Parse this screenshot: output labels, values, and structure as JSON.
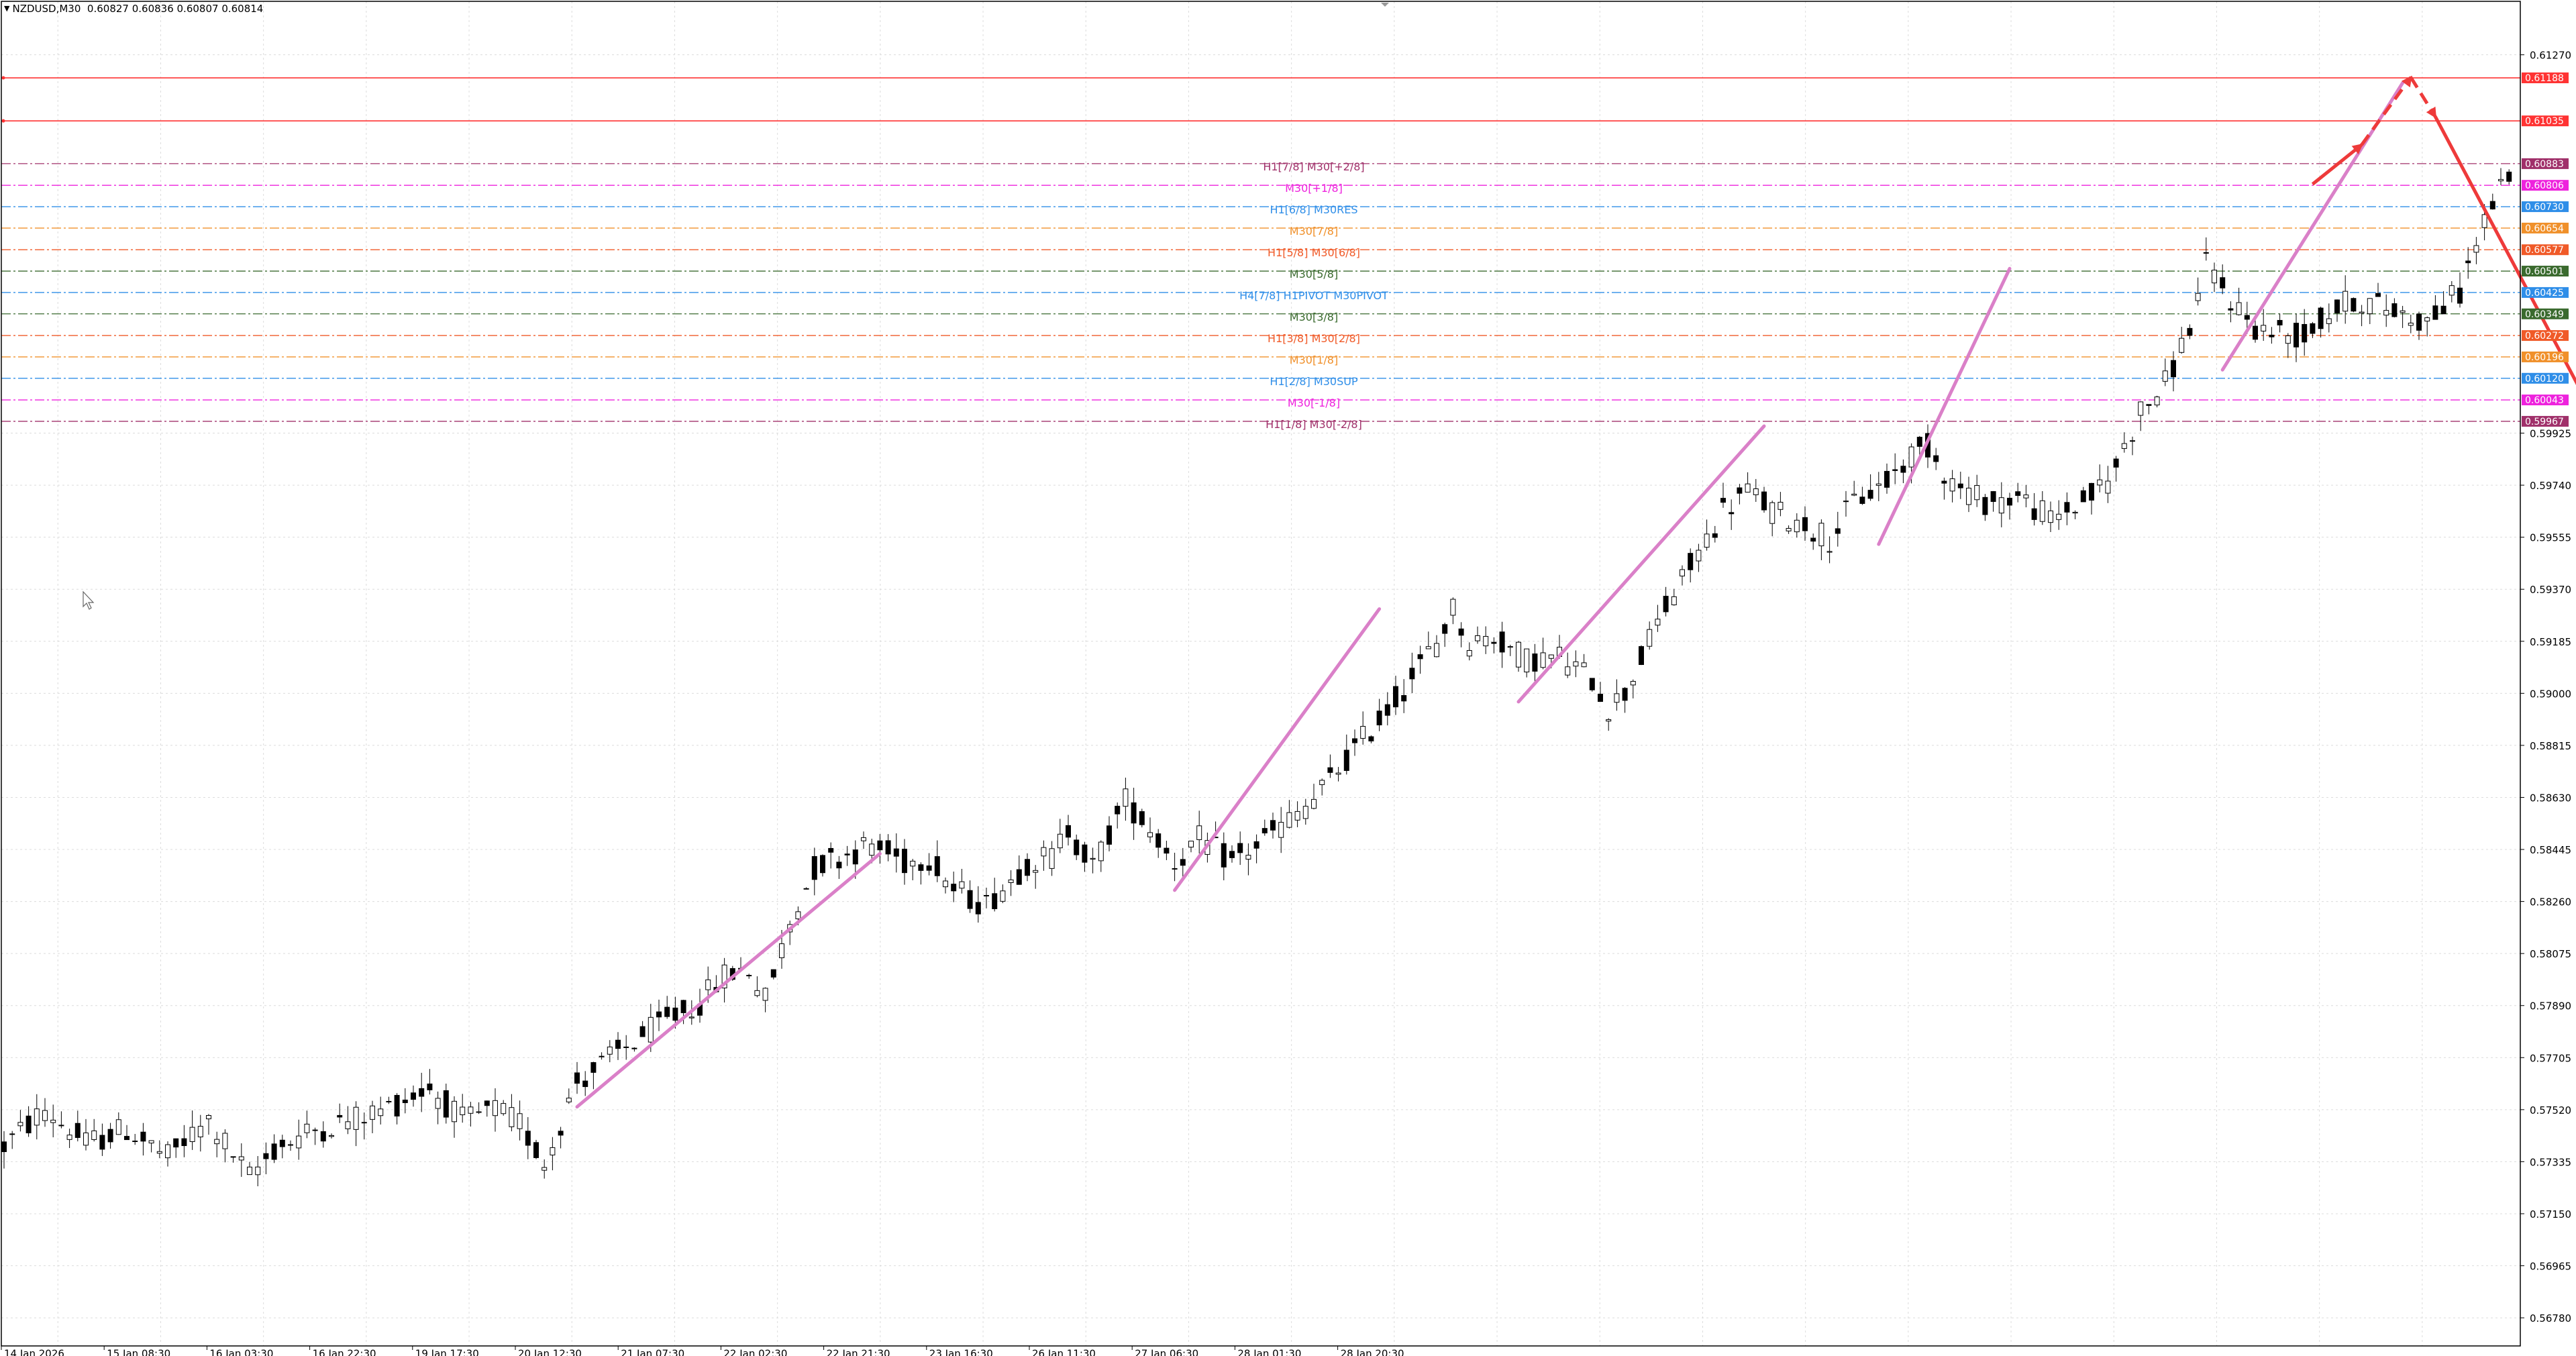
{
  "header": {
    "symbol": "NZDUSD,M30",
    "ohlc": "0.60827 0.60836 0.60807 0.60814"
  },
  "chart_data": {
    "type": "candlestick",
    "symbol": "NZDUSD",
    "timeframe": "M30",
    "y_range": [
      0.5668,
      0.6146
    ],
    "grid": true,
    "y_ticks": [
      "0.61270",
      "0.59925",
      "0.59740",
      "0.59555",
      "0.59370",
      "0.59185",
      "0.59000",
      "0.58815",
      "0.58630",
      "0.58445",
      "0.58260",
      "0.58075",
      "0.57890",
      "0.57705",
      "0.57520",
      "0.57335",
      "0.57150",
      "0.56965",
      "0.56780"
    ],
    "x_ticks": [
      "14 Jan 2026",
      "15 Jan 08:30",
      "16 Jan 03:30",
      "16 Jan 22:30",
      "19 Jan 17:30",
      "20 Jan 12:30",
      "21 Jan 07:30",
      "22 Jan 02:30",
      "22 Jan 21:30",
      "23 Jan 16:30",
      "26 Jan 11:30",
      "27 Jan 06:30",
      "28 Jan 01:30",
      "28 Jan 20:30"
    ],
    "price_path": [
      [
        0,
        0.5739
      ],
      [
        5,
        0.5752
      ],
      [
        10,
        0.574
      ],
      [
        15,
        0.5745
      ],
      [
        20,
        0.5735
      ],
      [
        25,
        0.5748
      ],
      [
        30,
        0.5728
      ],
      [
        33,
        0.5738
      ],
      [
        38,
        0.5745
      ],
      [
        42,
        0.5748
      ],
      [
        47,
        0.5753
      ],
      [
        52,
        0.576
      ],
      [
        56,
        0.5748
      ],
      [
        60,
        0.5752
      ],
      [
        63,
        0.5747
      ],
      [
        66,
        0.5733
      ],
      [
        70,
        0.5762
      ],
      [
        75,
        0.5772
      ],
      [
        80,
        0.5782
      ],
      [
        85,
        0.579
      ],
      [
        88,
        0.58
      ],
      [
        91,
        0.5802
      ],
      [
        93,
        0.5791
      ],
      [
        96,
        0.5818
      ],
      [
        99,
        0.5838
      ],
      [
        102,
        0.5842
      ],
      [
        106,
        0.5846
      ],
      [
        110,
        0.584
      ],
      [
        113,
        0.5842
      ],
      [
        116,
        0.583
      ],
      [
        120,
        0.5825
      ],
      [
        125,
        0.584
      ],
      [
        128,
        0.5842
      ],
      [
        130,
        0.5852
      ],
      [
        133,
        0.5838
      ],
      [
        137,
        0.5862
      ],
      [
        140,
        0.5852
      ],
      [
        143,
        0.584
      ],
      [
        146,
        0.5848
      ],
      [
        150,
        0.584
      ],
      [
        155,
        0.585
      ],
      [
        160,
        0.5862
      ],
      [
        165,
        0.588
      ],
      [
        170,
        0.5898
      ],
      [
        175,
        0.5918
      ],
      [
        177,
        0.593
      ],
      [
        179,
        0.5918
      ],
      [
        182,
        0.592
      ],
      [
        186,
        0.5912
      ],
      [
        190,
        0.5913
      ],
      [
        194,
        0.5905
      ],
      [
        196,
        0.5895
      ],
      [
        198,
        0.59
      ],
      [
        202,
        0.5925
      ],
      [
        206,
        0.5945
      ],
      [
        210,
        0.5965
      ],
      [
        213,
        0.5972
      ],
      [
        216,
        0.5965
      ],
      [
        220,
        0.596
      ],
      [
        223,
        0.5955
      ],
      [
        226,
        0.5968
      ],
      [
        230,
        0.5975
      ],
      [
        233,
        0.5985
      ],
      [
        235,
        0.5988
      ],
      [
        238,
        0.5975
      ],
      [
        242,
        0.5968
      ],
      [
        246,
        0.597
      ],
      [
        250,
        0.5962
      ],
      [
        254,
        0.5968
      ],
      [
        257,
        0.5975
      ],
      [
        261,
        0.6
      ],
      [
        264,
        0.601
      ],
      [
        267,
        0.603
      ],
      [
        269,
        0.6052
      ],
      [
        272,
        0.604
      ],
      [
        275,
        0.603
      ],
      [
        278,
        0.6028
      ],
      [
        281,
        0.6027
      ],
      [
        284,
        0.6035
      ],
      [
        287,
        0.604
      ],
      [
        290,
        0.6038
      ],
      [
        293,
        0.6035
      ],
      [
        296,
        0.6032
      ],
      [
        300,
        0.6043
      ],
      [
        302,
        0.606
      ],
      [
        304,
        0.6075
      ],
      [
        306,
        0.6082
      ]
    ],
    "levels": [
      {
        "price": 0.61188,
        "label": "",
        "tag": "0.61188",
        "color": "#ff3333",
        "style": "solid"
      },
      {
        "price": 0.61035,
        "label": "",
        "tag": "0.61035",
        "color": "#ff3333",
        "style": "solid"
      },
      {
        "price": 0.60883,
        "label": "H1[7/8] M30[+2/8]",
        "tag": "0.60883",
        "color": "#a0306a",
        "style": "dashdot"
      },
      {
        "price": 0.60806,
        "label": "M30[+1/8]",
        "tag": "0.60806",
        "color": "#ee22dd",
        "style": "dashdot"
      },
      {
        "price": 0.6073,
        "label": "H1[6/8] M30RES",
        "tag": "0.60730",
        "color": "#2f8ee8",
        "style": "dashdot"
      },
      {
        "price": 0.60654,
        "label": "M30[7/8]",
        "tag": "0.60654",
        "color": "#f0902a",
        "style": "dashdot"
      },
      {
        "price": 0.60577,
        "label": "H1[5/8] M30[6/8]",
        "tag": "0.60577",
        "color": "#f05a28",
        "style": "dashdot"
      },
      {
        "price": 0.60501,
        "label": "M30[5/8]",
        "tag": "0.60501",
        "color": "#3a6a2e",
        "style": "dashdot"
      },
      {
        "price": 0.60425,
        "label": "H4[7/8] H1PIVOT M30PIVOT",
        "tag": "0.60425",
        "color": "#2f8ee8",
        "style": "dashdot"
      },
      {
        "price": 0.60349,
        "label": "M30[3/8]",
        "tag": "0.60349",
        "color": "#3a6a2e",
        "style": "dashdot"
      },
      {
        "price": 0.60272,
        "label": "H1[3/8] M30[2/8]",
        "tag": "0.60272",
        "color": "#f05a28",
        "style": "dashdot"
      },
      {
        "price": 0.60196,
        "label": "M30[1/8]",
        "tag": "0.60196",
        "color": "#f0902a",
        "style": "dashdot"
      },
      {
        "price": 0.6012,
        "label": "H1[2/8] M30SUP",
        "tag": "0.60120",
        "color": "#2f8ee8",
        "style": "dashdot"
      },
      {
        "price": 0.60043,
        "label": "M30[-1/8]",
        "tag": "0.60043",
        "color": "#ee22dd",
        "style": "dashdot"
      },
      {
        "price": 0.59967,
        "label": "H1[1/8] M30[-2/8]",
        "tag": "0.59967",
        "color": "#a0306a",
        "style": "dashdot"
      }
    ],
    "trend_segments": [
      [
        [
          70,
          0.5753
        ],
        [
          107,
          0.5843
        ]
      ],
      [
        [
          143,
          0.583
        ],
        [
          168,
          0.593
        ]
      ],
      [
        [
          185,
          0.5897
        ],
        [
          215,
          0.5995
        ]
      ],
      [
        [
          229,
          0.5953
        ],
        [
          245,
          0.6051
        ]
      ],
      [
        [
          271,
          0.6015
        ],
        [
          293,
          0.6117
        ]
      ]
    ],
    "forecast": [
      {
        "from": [
          282,
          0.6081
        ],
        "to": [
          288,
          0.6095
        ],
        "style": "solid"
      },
      {
        "from": [
          288,
          0.6095
        ],
        "to": [
          294,
          0.6119
        ],
        "style": "dashed"
      },
      {
        "from": [
          294,
          0.6119
        ],
        "to": [
          297,
          0.6105
        ],
        "style": "dashed"
      },
      {
        "from": [
          297,
          0.6105
        ],
        "to": [
          324,
          0.5957
        ],
        "style": "solid"
      },
      {
        "from": [
          325,
          0.5952
        ],
        "to": [
          336,
          0.5894
        ],
        "style": "dashed"
      }
    ],
    "colors": {
      "candle": "#000000",
      "grid": "#dcdcdc",
      "trend": "#da80c8",
      "forecast": "#ee3a3a"
    }
  }
}
